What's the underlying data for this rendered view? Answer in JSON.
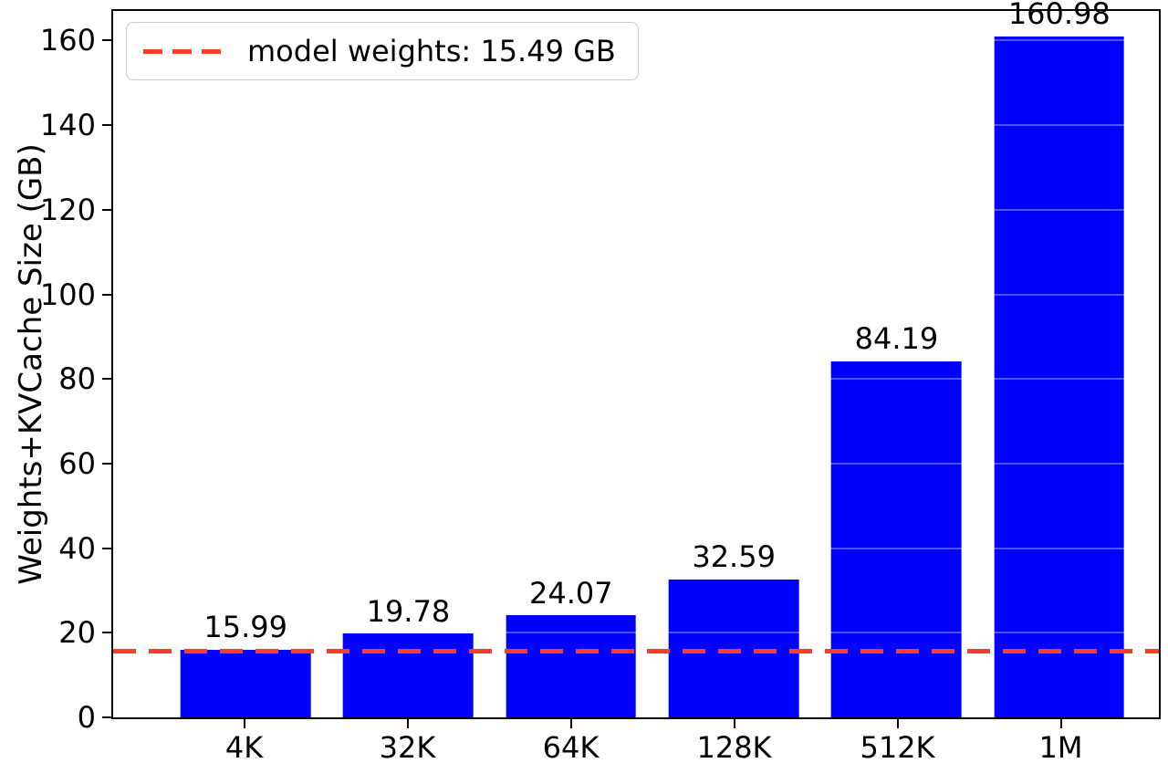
{
  "chart_data": {
    "type": "bar",
    "title": "",
    "categories": [
      "4K",
      "32K",
      "64K",
      "128K",
      "512K",
      "1M"
    ],
    "values": [
      15.99,
      19.78,
      24.07,
      32.59,
      84.19,
      160.98
    ],
    "bar_labels": [
      "15.99",
      "19.78",
      "24.07",
      "32.59",
      "84.19",
      "160.98"
    ],
    "xlabel": "",
    "ylabel": "Weights+KVCache Size (GB)",
    "ylim": [
      0,
      167
    ],
    "yticks": [
      0,
      20,
      40,
      60,
      80,
      100,
      120,
      140,
      160
    ],
    "bar_color": "#0000ff",
    "reference_line": {
      "value": 15.49,
      "label": "model weights: 15.49 GB",
      "color": "#fa3c28",
      "style": "dashed"
    },
    "legend_position": "upper left",
    "grid": false
  }
}
